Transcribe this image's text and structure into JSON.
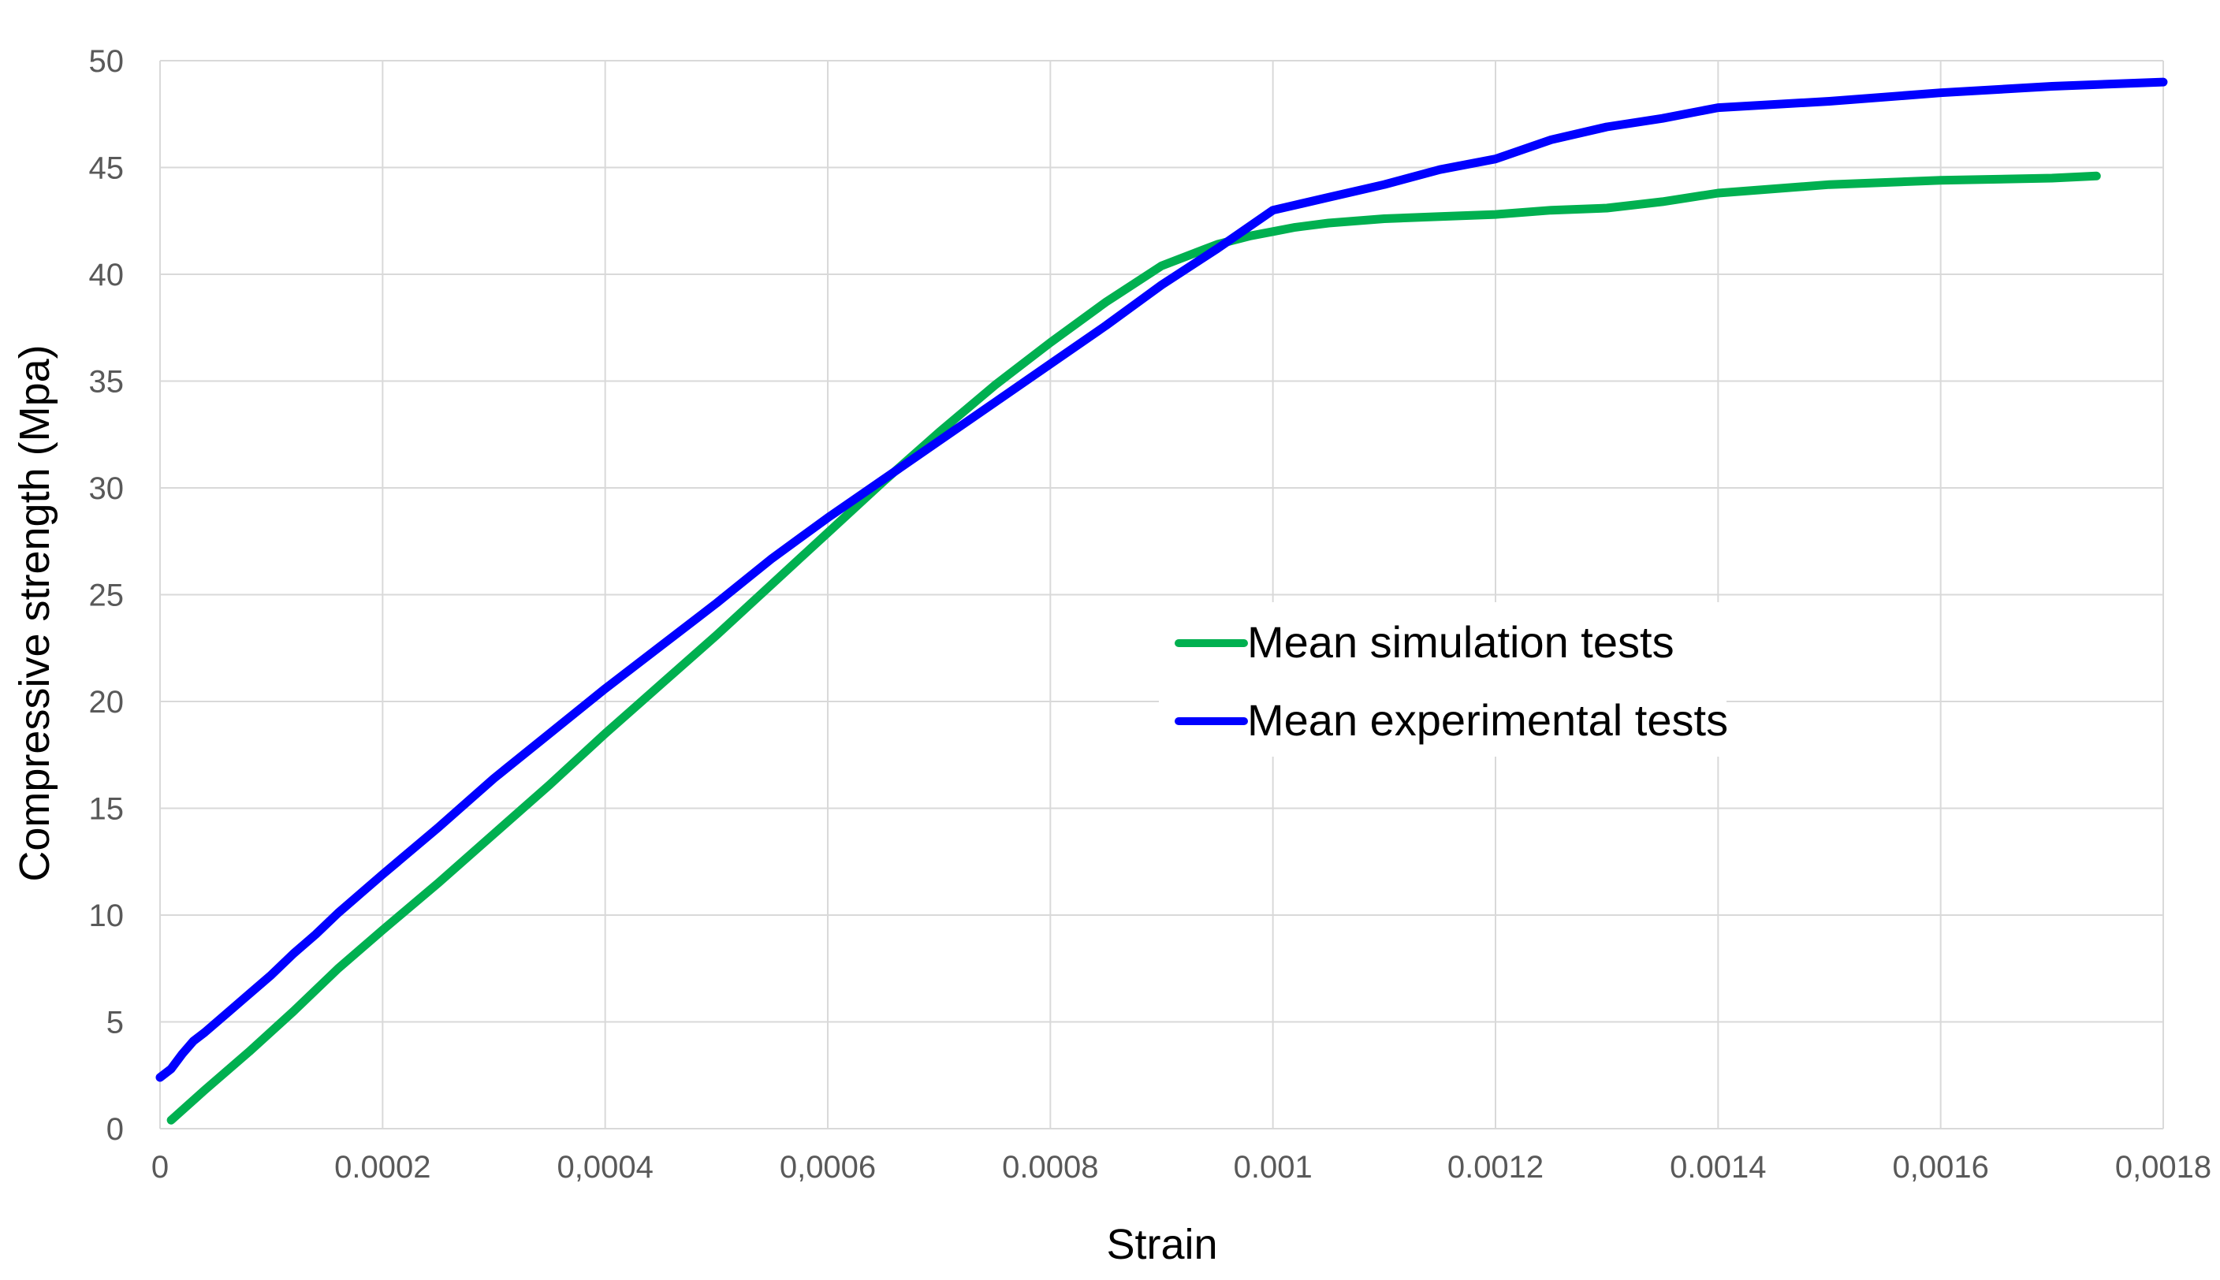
{
  "chart_data": {
    "type": "line",
    "title": "",
    "xlabel": "Strain",
    "ylabel": "Compressive strength (Mpa)",
    "xlim": [
      0,
      0.0018
    ],
    "ylim": [
      0,
      50
    ],
    "grid": true,
    "legend_position": "center-right",
    "x_tick_values": [
      0,
      0.0002,
      0.0004,
      0.0006,
      0.0008,
      0.001,
      0.0012,
      0.0014,
      0.0016,
      0.0018
    ],
    "x_tick_labels": [
      "0",
      "0.0002",
      "0,0004",
      "0,0006",
      "0.0008",
      "0.001",
      "0.0012",
      "0.0014",
      "0,0016",
      "0,0018"
    ],
    "y_tick_values": [
      0,
      5,
      10,
      15,
      20,
      25,
      30,
      35,
      40,
      45,
      50
    ],
    "y_tick_labels": [
      "0",
      "5",
      "10",
      "15",
      "20",
      "25",
      "30",
      "35",
      "40",
      "45",
      "50"
    ],
    "series": [
      {
        "name": "Mean simulation tests",
        "color": "#00b050",
        "x": [
          1e-05,
          4e-05,
          8e-05,
          0.00012,
          0.00016,
          0.0002,
          0.00025,
          0.0003,
          0.00035,
          0.0004,
          0.00045,
          0.0005,
          0.00055,
          0.0006,
          0.00065,
          0.0007,
          0.00075,
          0.0008,
          0.00085,
          0.0009,
          0.00095,
          0.00098,
          0.001,
          0.00102,
          0.00105,
          0.0011,
          0.00115,
          0.0012,
          0.00125,
          0.0013,
          0.00135,
          0.0014,
          0.0015,
          0.0016,
          0.0017,
          0.00174
        ],
        "y": [
          0.4,
          1.8,
          3.6,
          5.5,
          7.5,
          9.3,
          11.5,
          13.8,
          16.1,
          18.5,
          20.8,
          23.1,
          25.5,
          27.9,
          30.3,
          32.6,
          34.8,
          36.8,
          38.7,
          40.4,
          41.4,
          41.8,
          42.0,
          42.2,
          42.4,
          42.6,
          42.7,
          42.8,
          43.0,
          43.1,
          43.4,
          43.8,
          44.2,
          44.4,
          44.5,
          44.6
        ]
      },
      {
        "name": "Mean experimental tests",
        "color": "#0000ff",
        "x": [
          0,
          1e-05,
          2e-05,
          3e-05,
          4e-05,
          6e-05,
          8e-05,
          0.0001,
          0.00012,
          0.00014,
          0.00016,
          0.00018,
          0.0002,
          0.00025,
          0.0003,
          0.00035,
          0.0004,
          0.00045,
          0.0005,
          0.00055,
          0.0006,
          0.00065,
          0.0007,
          0.00075,
          0.0008,
          0.00085,
          0.0009,
          0.00095,
          0.001,
          0.00105,
          0.0011,
          0.00115,
          0.0012,
          0.00125,
          0.0013,
          0.00135,
          0.0014,
          0.0015,
          0.0016,
          0.0017,
          0.0018
        ],
        "y": [
          2.4,
          2.8,
          3.5,
          4.1,
          4.5,
          5.4,
          6.3,
          7.2,
          8.2,
          9.1,
          10.1,
          11.0,
          11.9,
          14.1,
          16.4,
          18.5,
          20.6,
          22.6,
          24.6,
          26.7,
          28.6,
          30.4,
          32.2,
          34.0,
          35.8,
          37.6,
          39.5,
          41.2,
          43.0,
          43.6,
          44.2,
          44.9,
          45.4,
          46.3,
          46.9,
          47.3,
          47.8,
          48.1,
          48.5,
          48.8,
          49.0
        ]
      }
    ]
  }
}
